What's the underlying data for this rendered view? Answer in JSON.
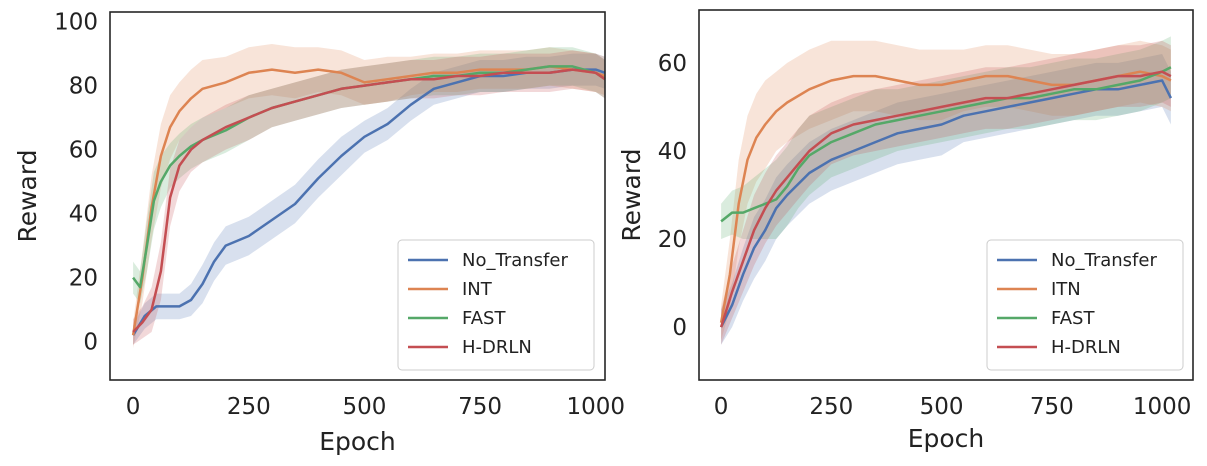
{
  "figure": {
    "charts": [
      {
        "id": "left",
        "type": "line",
        "xlabel": "Epoch",
        "ylabel": "Reward",
        "xlim": [
          -50,
          1020
        ],
        "ylim": [
          -12,
          103
        ],
        "xticks": [
          0,
          250,
          500,
          750,
          1000
        ],
        "yticks": [
          0,
          20,
          40,
          60,
          80,
          100
        ],
        "grid": false,
        "legend_position": "bottom-right",
        "series": [
          {
            "name": "No_Transfer",
            "color": "#4c72b0",
            "x": [
              0,
              25,
              50,
              75,
              100,
              125,
              150,
              175,
              200,
              250,
              300,
              350,
              400,
              450,
              500,
              550,
              600,
              650,
              700,
              750,
              800,
              850,
              900,
              950,
              1000,
              1020
            ],
            "y": [
              2,
              8,
              11,
              11,
              11,
              13,
              18,
              25,
              30,
              33,
              38,
              43,
              51,
              58,
              64,
              68,
              74,
              79,
              81,
              83,
              83,
              84,
              84,
              85,
              85,
              84
            ],
            "band": [
              3,
              4,
              4,
              4,
              4,
              5,
              6,
              6,
              6,
              6,
              6,
              6,
              6,
              6,
              5,
              5,
              5,
              5,
              5,
              5,
              5,
              5,
              5,
              5,
              5,
              5
            ]
          },
          {
            "name": "INT",
            "color": "#dd8452",
            "x": [
              0,
              20,
              40,
              60,
              80,
              100,
              125,
              150,
              200,
              250,
              300,
              350,
              400,
              450,
              500,
              550,
              600,
              650,
              700,
              750,
              800,
              850,
              900,
              950,
              1000,
              1020
            ],
            "y": [
              2,
              20,
              42,
              58,
              67,
              72,
              76,
              79,
              81,
              84,
              85,
              84,
              85,
              84,
              81,
              82,
              83,
              84,
              84,
              85,
              85,
              85,
              86,
              85,
              84,
              83
            ],
            "band": [
              4,
              8,
              10,
              10,
              10,
              9,
              9,
              9,
              8,
              8,
              8,
              8,
              7,
              7,
              7,
              7,
              6,
              6,
              6,
              6,
              6,
              6,
              6,
              6,
              6,
              6
            ]
          },
          {
            "name": "FAST",
            "color": "#55a868",
            "x": [
              0,
              15,
              30,
              45,
              60,
              80,
              100,
              125,
              150,
              200,
              250,
              300,
              350,
              400,
              450,
              500,
              550,
              600,
              650,
              700,
              750,
              800,
              850,
              900,
              950,
              1000,
              1020
            ],
            "y": [
              20,
              17,
              30,
              44,
              50,
              55,
              58,
              61,
              63,
              66,
              70,
              73,
              75,
              77,
              79,
              80,
              81,
              82,
              83,
              83,
              84,
              84,
              85,
              86,
              86,
              84,
              82
            ],
            "band": [
              5,
              5,
              8,
              9,
              8,
              7,
              7,
              7,
              7,
              7,
              7,
              6,
              6,
              6,
              6,
              6,
              6,
              6,
              6,
              6,
              6,
              6,
              6,
              6,
              6,
              6,
              6
            ]
          },
          {
            "name": "H-DRLN",
            "color": "#c44e52",
            "x": [
              0,
              20,
              40,
              60,
              80,
              100,
              125,
              150,
              200,
              250,
              300,
              350,
              400,
              450,
              500,
              550,
              600,
              650,
              700,
              750,
              800,
              850,
              900,
              950,
              1000,
              1020
            ],
            "y": [
              3,
              6,
              10,
              22,
              45,
              55,
              60,
              63,
              67,
              70,
              73,
              75,
              77,
              79,
              80,
              81,
              82,
              82,
              83,
              83,
              84,
              84,
              84,
              85,
              84,
              82
            ],
            "band": [
              4,
              5,
              7,
              9,
              9,
              8,
              7,
              7,
              7,
              7,
              6,
              6,
              6,
              6,
              6,
              6,
              6,
              6,
              6,
              6,
              6,
              6,
              6,
              6,
              6,
              6
            ]
          }
        ]
      },
      {
        "id": "right",
        "type": "line",
        "xlabel": "Epoch",
        "ylabel": "Reward",
        "xlim": [
          -50,
          1070
        ],
        "ylim": [
          -12,
          72
        ],
        "xticks": [
          0,
          250,
          500,
          750,
          1000
        ],
        "yticks": [
          0,
          20,
          40,
          60
        ],
        "grid": false,
        "legend_position": "bottom-right",
        "series": [
          {
            "name": "No_Transfer",
            "color": "#4c72b0",
            "x": [
              0,
              25,
              50,
              75,
              100,
              125,
              150,
              200,
              250,
              300,
              350,
              400,
              450,
              500,
              550,
              600,
              650,
              700,
              750,
              800,
              850,
              900,
              950,
              1000,
              1020
            ],
            "y": [
              0,
              5,
              12,
              18,
              22,
              27,
              30,
              35,
              38,
              40,
              42,
              44,
              45,
              46,
              48,
              49,
              50,
              51,
              52,
              53,
              54,
              54,
              55,
              56,
              52
            ],
            "band": [
              4,
              5,
              6,
              7,
              7,
              7,
              7,
              7,
              7,
              7,
              7,
              7,
              7,
              7,
              6,
              6,
              6,
              6,
              6,
              6,
              6,
              6,
              6,
              6,
              6
            ]
          },
          {
            "name": "ITN",
            "color": "#dd8452",
            "x": [
              0,
              20,
              40,
              60,
              80,
              100,
              125,
              150,
              200,
              250,
              300,
              350,
              400,
              450,
              500,
              550,
              600,
              650,
              700,
              750,
              800,
              850,
              900,
              950,
              1000,
              1020
            ],
            "y": [
              1,
              12,
              28,
              38,
              43,
              46,
              49,
              51,
              54,
              56,
              57,
              57,
              56,
              55,
              55,
              56,
              57,
              57,
              56,
              55,
              55,
              56,
              57,
              58,
              57,
              56
            ],
            "band": [
              4,
              8,
              10,
              10,
              10,
              10,
              9,
              9,
              9,
              9,
              8,
              8,
              8,
              8,
              8,
              7,
              7,
              7,
              7,
              7,
              7,
              7,
              7,
              7,
              7,
              7
            ]
          },
          {
            "name": "FAST",
            "color": "#55a868",
            "x": [
              0,
              25,
              50,
              75,
              100,
              125,
              150,
              175,
              200,
              250,
              300,
              350,
              400,
              450,
              500,
              550,
              600,
              650,
              700,
              750,
              800,
              850,
              900,
              950,
              1000,
              1020
            ],
            "y": [
              24,
              26,
              26,
              27,
              28,
              29,
              32,
              36,
              39,
              42,
              44,
              46,
              47,
              48,
              49,
              50,
              51,
              52,
              52,
              53,
              54,
              54,
              55,
              56,
              58,
              59
            ],
            "band": [
              4,
              5,
              6,
              7,
              8,
              9,
              9,
              9,
              9,
              8,
              8,
              8,
              7,
              7,
              7,
              7,
              7,
              7,
              7,
              7,
              7,
              7,
              7,
              7,
              7,
              7
            ]
          },
          {
            "name": "H-DRLN",
            "color": "#c44e52",
            "x": [
              0,
              25,
              50,
              75,
              100,
              125,
              150,
              175,
              200,
              250,
              300,
              350,
              400,
              450,
              500,
              550,
              600,
              650,
              700,
              750,
              800,
              850,
              900,
              950,
              1000,
              1020
            ],
            "y": [
              0,
              8,
              15,
              22,
              27,
              31,
              34,
              37,
              40,
              44,
              46,
              47,
              48,
              49,
              50,
              51,
              52,
              52,
              53,
              54,
              55,
              56,
              57,
              57,
              58,
              57
            ],
            "band": [
              4,
              6,
              7,
              8,
              8,
              8,
              8,
              8,
              8,
              7,
              7,
              7,
              7,
              7,
              7,
              7,
              7,
              7,
              7,
              7,
              7,
              7,
              7,
              7,
              7,
              7
            ]
          }
        ]
      }
    ]
  }
}
